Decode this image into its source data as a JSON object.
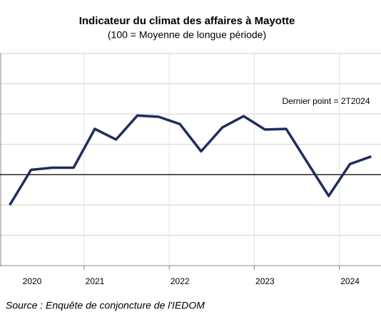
{
  "chart_data": {
    "type": "line",
    "title": "Indicateur du climat des affaires à Mayotte",
    "subtitle": "(100 = Moyenne de longue période)",
    "annotation": "Dernier point = 2T2024",
    "source": "Source : Enquête de conjoncture de l'IEDOM",
    "x": [
      2020.125,
      2020.375,
      2020.625,
      2020.875,
      2021.125,
      2021.375,
      2021.625,
      2021.875,
      2022.125,
      2022.375,
      2022.625,
      2022.875,
      2023.125,
      2023.375,
      2023.625,
      2023.875,
      2024.125,
      2024.375
    ],
    "series": [
      {
        "color": "#1f2d5c",
        "values": [
          90,
          101.6,
          102.3,
          102.3,
          115.1,
          111.6,
          119.5,
          119.1,
          116.7,
          107.7,
          115.6,
          119.3,
          114.9,
          115.1,
          104,
          93,
          103.5,
          106
        ]
      }
    ],
    "reference_line": 100,
    "xlim": [
      2020.01,
      2024.49
    ],
    "xticks": [
      2020,
      2021,
      2022,
      2023,
      2024
    ],
    "ylim": [
      70,
      140
    ],
    "yticks": [
      70,
      80,
      90,
      100,
      110,
      120,
      130,
      140
    ],
    "grid": true
  }
}
